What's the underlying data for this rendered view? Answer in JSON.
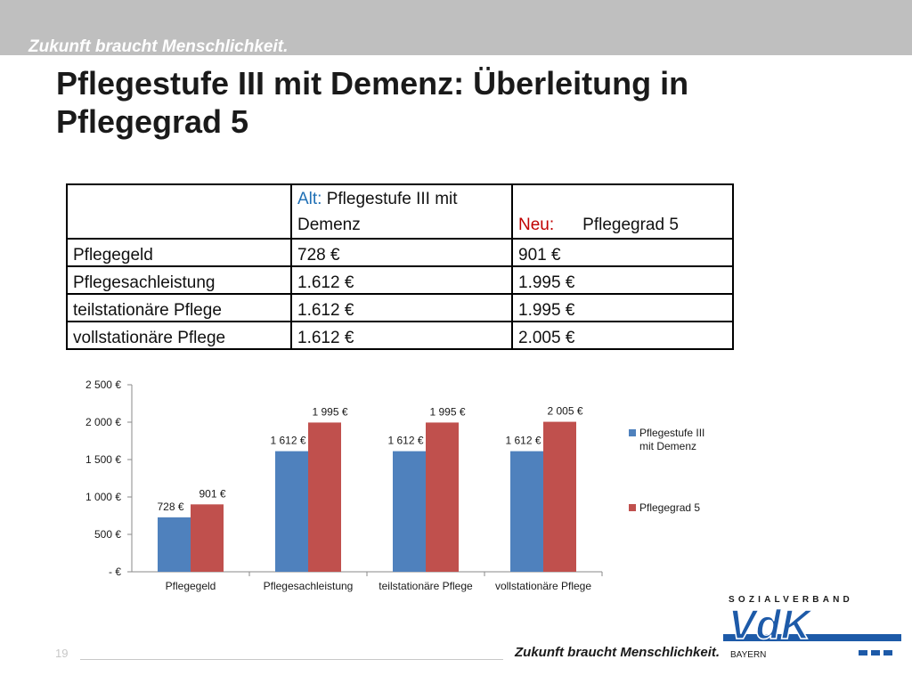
{
  "header": {
    "slogan": "Zukunft braucht Menschlichkeit.",
    "title": "Pflegestufe III mit Demenz: Überleitung in Pflegegrad 5"
  },
  "table": {
    "header_alt_word": "Alt:",
    "header_alt_rest": " Pflegestufe III mit Demenz",
    "header_neu_word": "Neu:",
    "header_neu_rest": "Pflegegrad 5",
    "rows": [
      {
        "label": "Pflegegeld",
        "alt": "728 €",
        "neu": "901 €"
      },
      {
        "label": "Pflegesachleistung",
        "alt": "1.612 €",
        "neu": "1.995 €"
      },
      {
        "label": "teilstationäre Pflege",
        "alt": "1.612 €",
        "neu": "1.995 €"
      },
      {
        "label": "vollstationäre Pflege",
        "alt": "1.612 €",
        "neu": "2.005 €"
      }
    ]
  },
  "chart_data": {
    "type": "bar",
    "categories": [
      "Pflegegeld",
      "Pflegesachleistung",
      "teilstationäre Pflege",
      "vollstationäre Pflege"
    ],
    "series": [
      {
        "name": "Pflegestufe III mit Demenz",
        "values": [
          728,
          1612,
          1612,
          1612
        ],
        "labels": [
          "728 €",
          "1 612 €",
          "1 612 €",
          "1 612 €"
        ],
        "color": "#4f81bd"
      },
      {
        "name": "Pflegegrad 5",
        "values": [
          901,
          1995,
          1995,
          2005
        ],
        "labels": [
          "901 €",
          "1 995 €",
          "1 995 €",
          "2 005 €"
        ],
        "color": "#c0504d"
      }
    ],
    "ylim": [
      0,
      2500
    ],
    "yticks": [
      0,
      500,
      1000,
      1500,
      2000,
      2500
    ],
    "ytick_labels": [
      "-   €",
      "500 €",
      "1 000 €",
      "1 500 €",
      "2 000 €",
      "2 500 €"
    ],
    "legend_position": "right",
    "grid": false
  },
  "footer": {
    "page_number": "19",
    "slogan": "Zukunft braucht Menschlichkeit.",
    "logo_top": "SOZIALVERBAND",
    "logo_main": "VdK",
    "logo_bottom": "BAYERN"
  }
}
